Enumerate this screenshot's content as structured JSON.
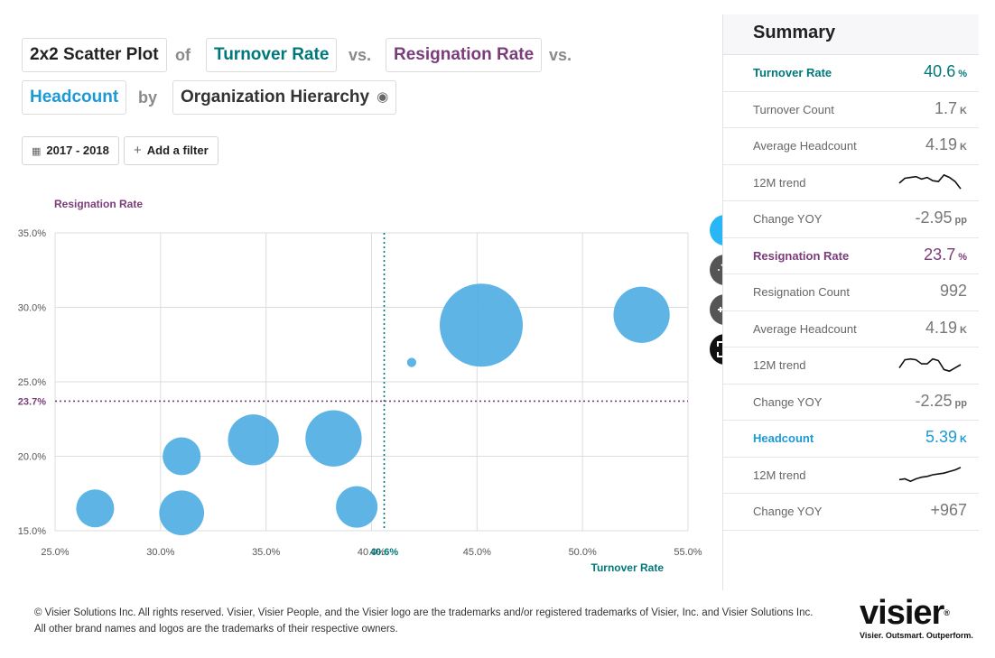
{
  "colors": {
    "turnover": "#00787a",
    "resignation": "#7a3c7a",
    "headcount": "#1b9ad6",
    "bubble": "#4faee3",
    "info_button": "#29b6f6",
    "tool_button": "#555555"
  },
  "query": {
    "chart_type": "2x2 Scatter Plot",
    "of": "of",
    "measure_x": "Turnover Rate",
    "vs1": "vs.",
    "measure_y": "Resignation Rate",
    "vs2": "vs.",
    "measure_size": "Headcount",
    "by": "by",
    "group_by": "Organization Hierarchy",
    "eye_icon": "eye-icon"
  },
  "filters": {
    "period": "2017 - 2018",
    "calendar_icon": "calendar-icon",
    "add_filter": "Add a filter",
    "plus_icon": "plus-icon"
  },
  "chart_data": {
    "type": "scatter",
    "title": "",
    "xlabel": "Turnover Rate",
    "ylabel": "Resignation Rate",
    "xlim": [
      25.0,
      55.0
    ],
    "ylim": [
      15.0,
      35.0
    ],
    "x_ticks": [
      "25.0%",
      "30.0%",
      "35.0%",
      "40.0%",
      "45.0%",
      "50.0%",
      "55.0%"
    ],
    "y_ticks": [
      "15.0%",
      "20.0%",
      "25.0%",
      "30.0%",
      "35.0%"
    ],
    "reference_lines": {
      "x": {
        "value": 40.6,
        "label": "40.6%"
      },
      "y": {
        "value": 23.7,
        "label": "23.7%"
      }
    },
    "grid": true,
    "points": [
      {
        "x": 26.9,
        "y": 16.5,
        "size": 5
      },
      {
        "x": 31.0,
        "y": 20.0,
        "size": 5
      },
      {
        "x": 31.0,
        "y": 16.2,
        "size": 7
      },
      {
        "x": 34.4,
        "y": 21.1,
        "size": 9
      },
      {
        "x": 38.2,
        "y": 21.2,
        "size": 11
      },
      {
        "x": 39.3,
        "y": 16.6,
        "size": 6
      },
      {
        "x": 41.9,
        "y": 26.3,
        "size": 0.3
      },
      {
        "x": 45.2,
        "y": 28.8,
        "size": 24
      },
      {
        "x": 52.8,
        "y": 29.5,
        "size": 11
      }
    ]
  },
  "tools": {
    "info": "i",
    "info_icon": "info-icon",
    "vote_icon": "vote-icon",
    "add_list_icon": "add-list-icon",
    "focus_icon": "focus-icon"
  },
  "summary": {
    "title": "Summary",
    "turnover": {
      "label": "Turnover Rate",
      "value": "40.6",
      "unit": "%",
      "count_label": "Turnover Count",
      "count_value": "1.7",
      "count_unit": "K",
      "avg_label": "Average Headcount",
      "avg_value": "4.19",
      "avg_unit": "K",
      "trend_label": "12M trend",
      "trend": [
        0.45,
        0.75,
        0.8,
        0.85,
        0.7,
        0.8,
        0.6,
        0.55,
        0.95,
        0.8,
        0.55,
        0.1
      ],
      "yoy_label": "Change YOY",
      "yoy_value": "-2.95",
      "yoy_unit": "pp"
    },
    "resignation": {
      "label": "Resignation Rate",
      "value": "23.7",
      "unit": "%",
      "count_label": "Resignation Count",
      "count_value": "992",
      "avg_label": "Average Headcount",
      "avg_value": "4.19",
      "avg_unit": "K",
      "trend_label": "12M trend",
      "trend": [
        0.3,
        0.8,
        0.85,
        0.8,
        0.55,
        0.55,
        0.85,
        0.75,
        0.2,
        0.1,
        0.3,
        0.5
      ],
      "yoy_label": "Change YOY",
      "yoy_value": "-2.25",
      "yoy_unit": "pp"
    },
    "headcount": {
      "label": "Headcount",
      "value": "5.39",
      "unit": "K",
      "trend_label": "12M trend",
      "trend": [
        0.2,
        0.25,
        0.1,
        0.25,
        0.35,
        0.4,
        0.5,
        0.55,
        0.6,
        0.7,
        0.8,
        0.95
      ],
      "yoy_label": "Change YOY",
      "yoy_value": "+967"
    }
  },
  "footer": {
    "line1": "© Visier Solutions Inc. All rights reserved. Visier, Visier People, and the Visier logo are the trademarks and/or registered trademarks of Visier, Inc. and Visier Solutions Inc.",
    "line2": "All other brand names and logos are the trademarks of their respective owners.",
    "logo_text": "visier",
    "logo_mark": "®",
    "tagline": "Visier. Outsmart. Outperform."
  }
}
